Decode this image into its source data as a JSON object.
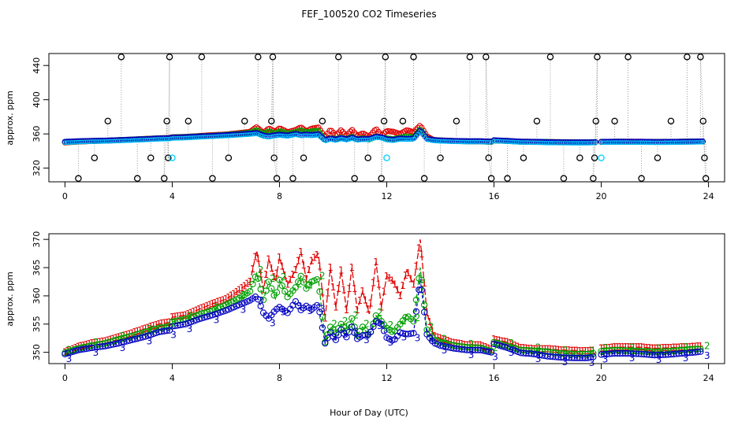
{
  "title": "FEF_100520  CO2 Timeseries",
  "xlabel": "Hour of Day (UTC)",
  "colors": {
    "series1": "#e00000",
    "series2": "#00a000",
    "series3": "#0000c0",
    "outlier": "#000000",
    "flag": "#00d0ff",
    "connector": "#999999"
  },
  "chart_data": [
    {
      "type": "scatter",
      "panel": "top",
      "ylabel": "approx. ppm",
      "xlim": [
        -0.6,
        24.6
      ],
      "ylim": [
        304,
        454
      ],
      "xticks": [
        0,
        4,
        8,
        12,
        16,
        20,
        24
      ],
      "yticks": [
        320,
        360,
        400,
        440
      ],
      "marker": "open-circle",
      "outliers": [
        {
          "x": 0.5,
          "y": 308
        },
        {
          "x": 1.1,
          "y": 332
        },
        {
          "x": 1.6,
          "y": 375
        },
        {
          "x": 2.1,
          "y": 450
        },
        {
          "x": 2.7,
          "y": 308
        },
        {
          "x": 3.2,
          "y": 332
        },
        {
          "x": 3.7,
          "y": 308
        },
        {
          "x": 3.8,
          "y": 375
        },
        {
          "x": 3.9,
          "y": 450
        },
        {
          "x": 3.85,
          "y": 332
        },
        {
          "x": 4.6,
          "y": 375
        },
        {
          "x": 5.1,
          "y": 450
        },
        {
          "x": 5.5,
          "y": 308
        },
        {
          "x": 6.1,
          "y": 332
        },
        {
          "x": 6.7,
          "y": 375
        },
        {
          "x": 7.2,
          "y": 450
        },
        {
          "x": 7.7,
          "y": 375
        },
        {
          "x": 7.75,
          "y": 450
        },
        {
          "x": 7.8,
          "y": 332
        },
        {
          "x": 7.9,
          "y": 308
        },
        {
          "x": 8.5,
          "y": 308
        },
        {
          "x": 8.9,
          "y": 332
        },
        {
          "x": 9.6,
          "y": 375
        },
        {
          "x": 10.2,
          "y": 450
        },
        {
          "x": 10.8,
          "y": 308
        },
        {
          "x": 11.3,
          "y": 332
        },
        {
          "x": 11.8,
          "y": 308
        },
        {
          "x": 11.9,
          "y": 375
        },
        {
          "x": 11.95,
          "y": 450
        },
        {
          "x": 12.6,
          "y": 375
        },
        {
          "x": 13.0,
          "y": 450
        },
        {
          "x": 13.4,
          "y": 308
        },
        {
          "x": 14.0,
          "y": 332
        },
        {
          "x": 14.6,
          "y": 375
        },
        {
          "x": 15.1,
          "y": 450
        },
        {
          "x": 15.7,
          "y": 450
        },
        {
          "x": 15.8,
          "y": 332
        },
        {
          "x": 15.9,
          "y": 308
        },
        {
          "x": 16.5,
          "y": 308
        },
        {
          "x": 17.1,
          "y": 332
        },
        {
          "x": 17.6,
          "y": 375
        },
        {
          "x": 18.1,
          "y": 450
        },
        {
          "x": 18.6,
          "y": 308
        },
        {
          "x": 19.2,
          "y": 332
        },
        {
          "x": 19.7,
          "y": 308
        },
        {
          "x": 19.8,
          "y": 375
        },
        {
          "x": 19.85,
          "y": 450
        },
        {
          "x": 19.75,
          "y": 332
        },
        {
          "x": 20.5,
          "y": 375
        },
        {
          "x": 21.0,
          "y": 450
        },
        {
          "x": 21.5,
          "y": 308
        },
        {
          "x": 22.1,
          "y": 332
        },
        {
          "x": 22.6,
          "y": 375
        },
        {
          "x": 23.2,
          "y": 450
        },
        {
          "x": 23.7,
          "y": 450
        },
        {
          "x": 23.8,
          "y": 375
        },
        {
          "x": 23.85,
          "y": 332
        },
        {
          "x": 23.9,
          "y": 308
        }
      ],
      "flags": [
        {
          "x": 4.0,
          "y": 332
        },
        {
          "x": 12.0,
          "y": 332
        },
        {
          "x": 20.0,
          "y": 332
        }
      ]
    },
    {
      "type": "line",
      "panel": "bottom",
      "ylabel": "approx. ppm",
      "xlim": [
        -0.6,
        24.6
      ],
      "ylim": [
        348,
        371
      ],
      "xticks": [
        0,
        4,
        8,
        12,
        16,
        20,
        24
      ],
      "yticks": [
        350,
        355,
        360,
        365,
        370
      ],
      "marker": "series-number",
      "segments": [
        [
          0,
          15.9
        ],
        [
          16.0,
          19.8
        ],
        [
          20.0,
          23.8
        ]
      ],
      "series": [
        {
          "label": "1",
          "points": [
            [
              0,
              350.0
            ],
            [
              0.5,
              351.0
            ],
            [
              1.0,
              351.6
            ],
            [
              1.5,
              352.0
            ],
            [
              2.0,
              352.7
            ],
            [
              2.5,
              353.4
            ],
            [
              3.0,
              354.2
            ],
            [
              3.5,
              355.0
            ],
            [
              3.9,
              355.3
            ],
            [
              4.0,
              356.2
            ],
            [
              4.5,
              356.6
            ],
            [
              5.0,
              357.6
            ],
            [
              5.5,
              358.6
            ],
            [
              6.0,
              359.4
            ],
            [
              6.5,
              361.0
            ],
            [
              6.9,
              362.5
            ],
            [
              7.15,
              368.0
            ],
            [
              7.4,
              361.0
            ],
            [
              7.6,
              366.5
            ],
            [
              7.85,
              362.5
            ],
            [
              8.0,
              366.8
            ],
            [
              8.3,
              362.0
            ],
            [
              8.6,
              364.6
            ],
            [
              8.8,
              367.8
            ],
            [
              9.0,
              363.0
            ],
            [
              9.2,
              366.2
            ],
            [
              9.45,
              367.5
            ],
            [
              9.7,
              356.0
            ],
            [
              9.9,
              365.0
            ],
            [
              10.1,
              358.0
            ],
            [
              10.3,
              364.5
            ],
            [
              10.5,
              357.5
            ],
            [
              10.7,
              365.0
            ],
            [
              10.9,
              357.5
            ],
            [
              11.1,
              360.8
            ],
            [
              11.35,
              356.8
            ],
            [
              11.6,
              366.0
            ],
            [
              11.8,
              358.0
            ],
            [
              12.0,
              363.5
            ],
            [
              12.25,
              362.5
            ],
            [
              12.5,
              360.0
            ],
            [
              12.75,
              364.5
            ],
            [
              13.0,
              362.0
            ],
            [
              13.25,
              370.0
            ],
            [
              13.5,
              357.0
            ],
            [
              13.75,
              353.0
            ],
            [
              14.0,
              352.5
            ],
            [
              14.5,
              351.7
            ],
            [
              15.0,
              351.3
            ],
            [
              15.5,
              351.3
            ],
            [
              15.9,
              350.5
            ],
            [
              16.0,
              352.3
            ],
            [
              16.5,
              351.8
            ],
            [
              17.0,
              350.8
            ],
            [
              17.5,
              350.6
            ],
            [
              18.0,
              350.6
            ],
            [
              18.5,
              350.4
            ],
            [
              19.0,
              350.3
            ],
            [
              19.5,
              350.2
            ],
            [
              19.8,
              350.4
            ],
            [
              20.0,
              350.7
            ],
            [
              20.5,
              350.9
            ],
            [
              21.0,
              350.9
            ],
            [
              21.5,
              350.9
            ],
            [
              22.0,
              350.7
            ],
            [
              22.5,
              350.8
            ],
            [
              23.0,
              350.9
            ],
            [
              23.5,
              351.0
            ],
            [
              23.8,
              351.1
            ]
          ]
        },
        {
          "label": "2",
          "points": [
            [
              0,
              349.9
            ],
            [
              0.5,
              350.7
            ],
            [
              1.0,
              351.2
            ],
            [
              1.5,
              351.6
            ],
            [
              2.0,
              352.3
            ],
            [
              2.5,
              352.9
            ],
            [
              3.0,
              353.6
            ],
            [
              3.5,
              354.3
            ],
            [
              3.9,
              354.6
            ],
            [
              4.0,
              355.4
            ],
            [
              4.5,
              355.9
            ],
            [
              5.0,
              356.7
            ],
            [
              5.5,
              357.4
            ],
            [
              6.0,
              358.4
            ],
            [
              6.5,
              359.6
            ],
            [
              6.9,
              360.8
            ],
            [
              7.15,
              364.0
            ],
            [
              7.4,
              359.3
            ],
            [
              7.6,
              362.5
            ],
            [
              7.85,
              359.5
            ],
            [
              8.0,
              362.8
            ],
            [
              8.3,
              359.8
            ],
            [
              8.6,
              361.5
            ],
            [
              8.8,
              363.5
            ],
            [
              9.0,
              361.3
            ],
            [
              9.2,
              362.5
            ],
            [
              9.45,
              363.0
            ],
            [
              9.7,
              351.8
            ],
            [
              9.9,
              354.5
            ],
            [
              10.1,
              353.5
            ],
            [
              10.3,
              355.0
            ],
            [
              10.5,
              353.8
            ],
            [
              10.7,
              356.0
            ],
            [
              10.9,
              353.0
            ],
            [
              11.1,
              354.5
            ],
            [
              11.35,
              352.9
            ],
            [
              11.6,
              356.5
            ],
            [
              11.8,
              355.5
            ],
            [
              12.0,
              354.3
            ],
            [
              12.25,
              353.5
            ],
            [
              12.5,
              355.0
            ],
            [
              12.75,
              356.5
            ],
            [
              13.0,
              355.5
            ],
            [
              13.25,
              365.0
            ],
            [
              13.5,
              354.0
            ],
            [
              13.75,
              352.3
            ],
            [
              14.0,
              351.8
            ],
            [
              14.5,
              351.2
            ],
            [
              15.0,
              350.9
            ],
            [
              15.5,
              350.8
            ],
            [
              15.9,
              350.2
            ],
            [
              16.0,
              351.8
            ],
            [
              16.5,
              351.1
            ],
            [
              17.0,
              350.4
            ],
            [
              17.5,
              350.3
            ],
            [
              18.0,
              350.1
            ],
            [
              18.5,
              349.8
            ],
            [
              19.0,
              349.7
            ],
            [
              19.5,
              349.7
            ],
            [
              19.8,
              349.9
            ],
            [
              20.0,
              350.2
            ],
            [
              20.5,
              350.4
            ],
            [
              21.0,
              350.3
            ],
            [
              21.5,
              350.2
            ],
            [
              22.0,
              350.1
            ],
            [
              22.5,
              350.2
            ],
            [
              23.0,
              350.4
            ],
            [
              23.5,
              350.6
            ],
            [
              23.8,
              350.6
            ]
          ]
        },
        {
          "label": "3",
          "points": [
            [
              0,
              349.7
            ],
            [
              0.5,
              350.4
            ],
            [
              1.0,
              350.8
            ],
            [
              1.5,
              351.1
            ],
            [
              2.0,
              351.6
            ],
            [
              2.5,
              352.2
            ],
            [
              3.0,
              352.8
            ],
            [
              3.5,
              353.6
            ],
            [
              3.9,
              353.9
            ],
            [
              4.0,
              354.6
            ],
            [
              4.5,
              355.0
            ],
            [
              5.0,
              355.9
            ],
            [
              5.5,
              356.6
            ],
            [
              6.0,
              357.4
            ],
            [
              6.5,
              358.4
            ],
            [
              6.9,
              359.2
            ],
            [
              7.15,
              360.0
            ],
            [
              7.4,
              357.0
            ],
            [
              7.6,
              356.0
            ],
            [
              7.85,
              357.5
            ],
            [
              8.0,
              358.0
            ],
            [
              8.3,
              357.0
            ],
            [
              8.6,
              359.0
            ],
            [
              8.8,
              357.5
            ],
            [
              9.0,
              358.2
            ],
            [
              9.2,
              357.6
            ],
            [
              9.45,
              358.5
            ],
            [
              9.7,
              351.6
            ],
            [
              9.9,
              353.5
            ],
            [
              10.1,
              352.2
            ],
            [
              10.3,
              354.0
            ],
            [
              10.5,
              352.7
            ],
            [
              10.7,
              354.5
            ],
            [
              10.9,
              352.4
            ],
            [
              11.1,
              353.0
            ],
            [
              11.35,
              353.1
            ],
            [
              11.6,
              355.5
            ],
            [
              11.8,
              355.0
            ],
            [
              12.0,
              352.6
            ],
            [
              12.25,
              352.0
            ],
            [
              12.5,
              353.5
            ],
            [
              12.75,
              353.2
            ],
            [
              13.0,
              353.4
            ],
            [
              13.25,
              363.0
            ],
            [
              13.5,
              353.2
            ],
            [
              13.75,
              351.7
            ],
            [
              14.0,
              351.2
            ],
            [
              14.5,
              350.7
            ],
            [
              15.0,
              350.4
            ],
            [
              15.5,
              350.4
            ],
            [
              15.9,
              350.0
            ],
            [
              16.0,
              351.5
            ],
            [
              16.5,
              350.8
            ],
            [
              17.0,
              349.9
            ],
            [
              17.5,
              349.7
            ],
            [
              18.0,
              349.3
            ],
            [
              18.5,
              349.1
            ],
            [
              19.0,
              349.0
            ],
            [
              19.5,
              349.0
            ],
            [
              19.8,
              349.3
            ],
            [
              20.0,
              349.6
            ],
            [
              20.5,
              349.8
            ],
            [
              21.0,
              349.8
            ],
            [
              21.5,
              349.7
            ],
            [
              22.0,
              349.5
            ],
            [
              22.5,
              349.6
            ],
            [
              23.0,
              349.8
            ],
            [
              23.5,
              350.0
            ],
            [
              23.8,
              350.2
            ]
          ]
        }
      ]
    }
  ]
}
